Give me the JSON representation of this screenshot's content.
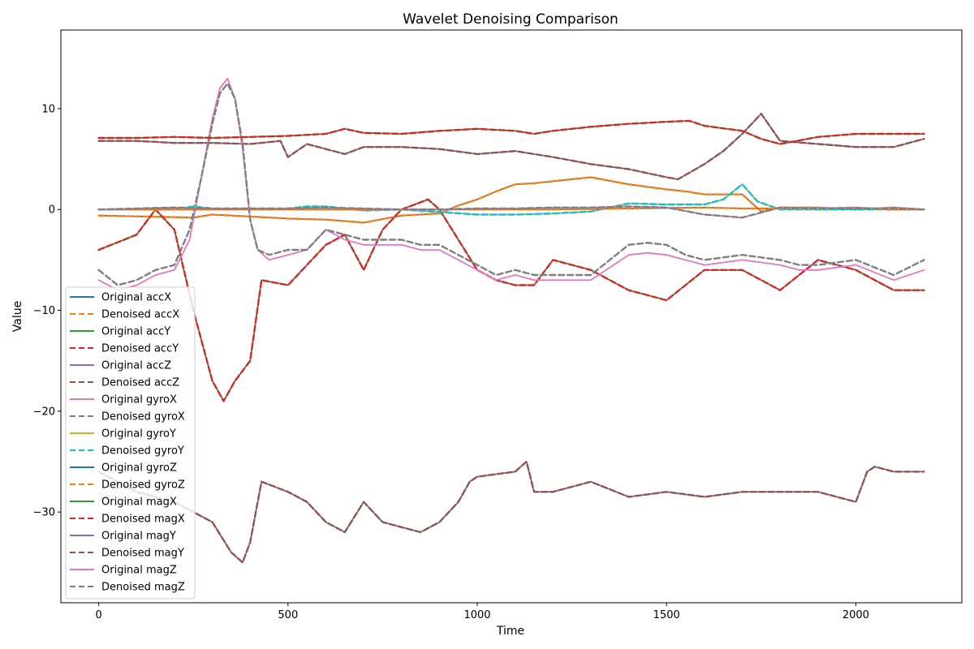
{
  "chart_data": {
    "type": "line",
    "title": "Wavelet Denoising Comparison",
    "xlabel": "Time",
    "ylabel": "Value",
    "xlim": [
      -100,
      2280
    ],
    "ylim": [
      -39,
      17.8
    ],
    "x_ticks": [
      0,
      500,
      1000,
      1500,
      2000
    ],
    "y_ticks": [
      -30,
      -20,
      -10,
      0,
      10
    ],
    "x_tick_labels": [
      "0",
      "500",
      "1000",
      "1500",
      "2000"
    ],
    "y_tick_labels": [
      "−30",
      "−20",
      "−10",
      "0",
      "10"
    ],
    "grid": false,
    "legend_position": "lower-left",
    "series": [
      {
        "name": "Original accX",
        "color": "#1f77b4",
        "style": "solid",
        "x": [
          0,
          250,
          300,
          400,
          500,
          600,
          700,
          800,
          900,
          950,
          1000,
          1050,
          1100,
          1150,
          1200,
          1300,
          1400,
          1500,
          1550,
          1600,
          1700,
          1750,
          1800,
          1900,
          2000,
          2100,
          2180
        ],
        "y": [
          -0.6,
          -0.8,
          -0.5,
          -0.7,
          -0.9,
          -1.0,
          -1.3,
          -0.6,
          -0.4,
          0.4,
          1.0,
          1.8,
          2.5,
          2.6,
          2.8,
          3.2,
          2.5,
          2.0,
          1.8,
          1.5,
          1.5,
          -0.2,
          0.2,
          0.2,
          0.0,
          0.2,
          0.0
        ]
      },
      {
        "name": "Denoised accX",
        "color": "#ff7f0e",
        "style": "dashed",
        "x": [
          0,
          250,
          300,
          400,
          500,
          600,
          700,
          800,
          900,
          950,
          1000,
          1050,
          1100,
          1150,
          1200,
          1300,
          1400,
          1500,
          1550,
          1600,
          1700,
          1750,
          1800,
          1900,
          2000,
          2100,
          2180
        ],
        "y": [
          -0.6,
          -0.8,
          -0.5,
          -0.7,
          -0.9,
          -1.0,
          -1.3,
          -0.6,
          -0.4,
          0.4,
          1.0,
          1.8,
          2.5,
          2.6,
          2.8,
          3.2,
          2.5,
          2.0,
          1.8,
          1.5,
          1.5,
          -0.2,
          0.2,
          0.2,
          0.0,
          0.2,
          0.0
        ]
      },
      {
        "name": "Original accY",
        "color": "#2ca02c",
        "style": "solid",
        "x": [
          0,
          100,
          150,
          200,
          250,
          300,
          330,
          360,
          400,
          430,
          500,
          550,
          600,
          650,
          700,
          750,
          800,
          870,
          900,
          950,
          1000,
          1050,
          1100,
          1150,
          1200,
          1300,
          1400,
          1500,
          1600,
          1700,
          1800,
          1900,
          2000,
          2100,
          2180
        ],
        "y": [
          -4,
          -2.5,
          0,
          -2,
          -10,
          -17,
          -19,
          -17,
          -15,
          -7,
          -7.5,
          -5.5,
          -3.5,
          -2.5,
          -6,
          -2,
          0,
          1,
          0,
          -3,
          -6,
          -7,
          -7.5,
          -7.5,
          -5,
          -6,
          -8,
          -9,
          -6,
          -6,
          -8,
          -5,
          -6,
          -8,
          -8
        ]
      },
      {
        "name": "Denoised accY",
        "color": "#d62728",
        "style": "dashed",
        "x": [
          0,
          100,
          150,
          200,
          250,
          300,
          330,
          360,
          400,
          430,
          500,
          550,
          600,
          650,
          700,
          750,
          800,
          870,
          900,
          950,
          1000,
          1050,
          1100,
          1150,
          1200,
          1300,
          1400,
          1500,
          1600,
          1700,
          1800,
          1900,
          2000,
          2100,
          2180
        ],
        "y": [
          -4,
          -2.5,
          0,
          -2,
          -10,
          -17,
          -19,
          -17,
          -15,
          -7,
          -7.5,
          -5.5,
          -3.5,
          -2.5,
          -6,
          -2,
          0,
          1,
          0,
          -3,
          -6,
          -7,
          -7.5,
          -7.5,
          -5,
          -6,
          -8,
          -9,
          -6,
          -6,
          -8,
          -5,
          -6,
          -8,
          -8
        ]
      },
      {
        "name": "Original accZ",
        "color": "#9467bd",
        "style": "solid",
        "x": [
          0,
          100,
          200,
          300,
          400,
          480,
          500,
          550,
          600,
          650,
          700,
          800,
          900,
          1000,
          1100,
          1200,
          1300,
          1400,
          1500,
          1530,
          1600,
          1650,
          1700,
          1750,
          1800,
          1900,
          2000,
          2100,
          2180
        ],
        "y": [
          6.8,
          6.8,
          6.6,
          6.6,
          6.5,
          6.8,
          5.2,
          6.5,
          6.0,
          5.5,
          6.2,
          6.2,
          6.0,
          5.5,
          5.8,
          5.2,
          4.5,
          4.0,
          3.2,
          3.0,
          4.5,
          5.8,
          7.5,
          9.5,
          6.8,
          6.5,
          6.2,
          6.2,
          7.0
        ]
      },
      {
        "name": "Denoised accZ",
        "color": "#8c564b",
        "style": "dashed",
        "x": [
          0,
          100,
          200,
          300,
          400,
          480,
          500,
          550,
          600,
          650,
          700,
          800,
          900,
          1000,
          1100,
          1200,
          1300,
          1400,
          1500,
          1530,
          1600,
          1650,
          1700,
          1750,
          1800,
          1900,
          2000,
          2100,
          2180
        ],
        "y": [
          6.8,
          6.8,
          6.6,
          6.6,
          6.5,
          6.8,
          5.2,
          6.5,
          6.0,
          5.5,
          6.2,
          6.2,
          6.0,
          5.5,
          5.8,
          5.2,
          4.5,
          4.0,
          3.2,
          3.0,
          4.5,
          5.8,
          7.5,
          9.5,
          6.8,
          6.5,
          6.2,
          6.2,
          7.0
        ]
      },
      {
        "name": "Original gyroX",
        "color": "#e377c2",
        "style": "solid",
        "x": [
          0,
          50,
          100,
          150,
          200,
          240,
          270,
          300,
          320,
          340,
          360,
          380,
          400,
          420,
          450,
          500,
          550,
          600,
          650,
          700,
          750,
          800,
          850,
          900,
          950,
          1000,
          1050,
          1100,
          1150,
          1200,
          1300,
          1400,
          1450,
          1500,
          1550,
          1600,
          1700,
          1800,
          1850,
          1900,
          2000,
          2100,
          2180
        ],
        "y": [
          -7,
          -8,
          -7.5,
          -6.5,
          -6,
          -3,
          3,
          9,
          12,
          13,
          11,
          6,
          -1,
          -4,
          -5,
          -4.5,
          -4,
          -2,
          -3,
          -3.5,
          -3.5,
          -3.5,
          -4,
          -4,
          -5,
          -6,
          -7,
          -6.5,
          -7,
          -7,
          -7,
          -4.5,
          -4.3,
          -4.5,
          -5,
          -5.5,
          -5,
          -5.5,
          -6,
          -6,
          -5.5,
          -7,
          -6
        ]
      },
      {
        "name": "Denoised gyroX",
        "color": "#7f7f7f",
        "style": "dashed",
        "x": [
          0,
          50,
          100,
          150,
          200,
          240,
          270,
          300,
          320,
          340,
          360,
          380,
          400,
          420,
          450,
          500,
          550,
          600,
          650,
          700,
          750,
          800,
          850,
          900,
          950,
          1000,
          1050,
          1100,
          1150,
          1200,
          1300,
          1400,
          1450,
          1500,
          1550,
          1600,
          1700,
          1800,
          1850,
          1900,
          2000,
          2100,
          2180
        ],
        "y": [
          -6,
          -7.5,
          -7,
          -6,
          -5.5,
          -2,
          3,
          8.5,
          11.5,
          12.5,
          11,
          6.5,
          -1,
          -4,
          -4.5,
          -4,
          -4,
          -2,
          -2.5,
          -3,
          -3,
          -3,
          -3.5,
          -3.5,
          -4.5,
          -5.5,
          -6.5,
          -6,
          -6.5,
          -6.5,
          -6.5,
          -3.5,
          -3.3,
          -3.5,
          -4.5,
          -5,
          -4.5,
          -5,
          -5.5,
          -5.5,
          -5,
          -6.5,
          -5
        ]
      },
      {
        "name": "Original gyroY",
        "color": "#bcbd22",
        "style": "solid",
        "x": [
          0,
          200,
          250,
          300,
          400,
          500,
          550,
          600,
          700,
          800,
          1000,
          1100,
          1200,
          1300,
          1400,
          1500,
          1600,
          1650,
          1700,
          1740,
          1800,
          1900,
          2000,
          2100,
          2180
        ],
        "y": [
          0,
          0,
          0.3,
          0.1,
          0,
          0.1,
          0.3,
          0.3,
          -0.1,
          0,
          -0.5,
          -0.5,
          -0.4,
          -0.2,
          0.6,
          0.5,
          0.5,
          1.0,
          2.5,
          0.8,
          0,
          0,
          0,
          0,
          0
        ]
      },
      {
        "name": "Denoised gyroY",
        "color": "#17becf",
        "style": "dashed",
        "x": [
          0,
          200,
          250,
          300,
          400,
          500,
          550,
          600,
          700,
          800,
          1000,
          1100,
          1200,
          1300,
          1400,
          1500,
          1600,
          1650,
          1700,
          1740,
          1800,
          1900,
          2000,
          2100,
          2180
        ],
        "y": [
          0,
          0,
          0.3,
          0.1,
          0,
          0.1,
          0.3,
          0.3,
          -0.1,
          0,
          -0.5,
          -0.5,
          -0.4,
          -0.2,
          0.6,
          0.5,
          0.5,
          1.0,
          2.5,
          0.8,
          0,
          0,
          0,
          0,
          0
        ]
      },
      {
        "name": "Original gyroZ",
        "color": "#1f77b4",
        "style": "solid",
        "x": [
          0,
          200,
          400,
          600,
          800,
          1000,
          1200,
          1400,
          1600,
          1700,
          1800,
          1900,
          2000,
          2100,
          2180
        ],
        "y": [
          0,
          0,
          0,
          0,
          0,
          0,
          0,
          0.1,
          0.2,
          0.1,
          0.1,
          0.1,
          0.2,
          0,
          0
        ]
      },
      {
        "name": "Denoised gyroZ",
        "color": "#ff7f0e",
        "style": "dashed",
        "x": [
          0,
          200,
          400,
          600,
          800,
          1000,
          1200,
          1400,
          1600,
          1700,
          1800,
          1900,
          2000,
          2100,
          2180
        ],
        "y": [
          0,
          0,
          0,
          0,
          0,
          0,
          0,
          0.1,
          0.2,
          0.1,
          0.1,
          0.1,
          0.2,
          0,
          0
        ]
      },
      {
        "name": "Original magX",
        "color": "#2ca02c",
        "style": "solid",
        "x": [
          0,
          100,
          200,
          300,
          400,
          500,
          600,
          650,
          700,
          800,
          900,
          1000,
          1100,
          1150,
          1200,
          1300,
          1400,
          1500,
          1560,
          1600,
          1700,
          1750,
          1800,
          1900,
          2000,
          2100,
          2180
        ],
        "y": [
          7.1,
          7.1,
          7.2,
          7.1,
          7.2,
          7.3,
          7.5,
          8.0,
          7.6,
          7.5,
          7.8,
          8.0,
          7.8,
          7.5,
          7.8,
          8.2,
          8.5,
          8.7,
          8.8,
          8.3,
          7.8,
          7.0,
          6.5,
          7.2,
          7.5,
          7.5,
          7.5
        ]
      },
      {
        "name": "Denoised magX",
        "color": "#d62728",
        "style": "dashed",
        "x": [
          0,
          100,
          200,
          300,
          400,
          500,
          600,
          650,
          700,
          800,
          900,
          1000,
          1100,
          1150,
          1200,
          1300,
          1400,
          1500,
          1560,
          1600,
          1700,
          1750,
          1800,
          1900,
          2000,
          2100,
          2180
        ],
        "y": [
          7.1,
          7.1,
          7.2,
          7.1,
          7.2,
          7.3,
          7.5,
          8.0,
          7.6,
          7.5,
          7.8,
          8.0,
          7.8,
          7.5,
          7.8,
          8.2,
          8.5,
          8.7,
          8.8,
          8.3,
          7.8,
          7.0,
          6.5,
          7.2,
          7.5,
          7.5,
          7.5
        ]
      },
      {
        "name": "Original magY",
        "color": "#9467bd",
        "style": "solid",
        "x": [
          0,
          100,
          200,
          250,
          300,
          350,
          380,
          400,
          430,
          500,
          550,
          600,
          650,
          700,
          750,
          800,
          850,
          900,
          950,
          980,
          1000,
          1100,
          1130,
          1150,
          1200,
          1300,
          1400,
          1500,
          1600,
          1700,
          1800,
          1900,
          2000,
          2030,
          2050,
          2100,
          2180
        ],
        "y": [
          -26,
          -28,
          -29,
          -30,
          -31,
          -34,
          -35,
          -33,
          -27,
          -28,
          -29,
          -31,
          -32,
          -29,
          -31,
          -31.5,
          -32,
          -31,
          -29,
          -27,
          -26.5,
          -26,
          -25,
          -28,
          -28,
          -27,
          -28.5,
          -28,
          -28.5,
          -28,
          -28,
          -28,
          -29,
          -26,
          -25.5,
          -26,
          -26
        ]
      },
      {
        "name": "Denoised magY",
        "color": "#8c564b",
        "style": "dashed",
        "x": [
          0,
          100,
          200,
          250,
          300,
          350,
          380,
          400,
          430,
          500,
          550,
          600,
          650,
          700,
          750,
          800,
          850,
          900,
          950,
          980,
          1000,
          1100,
          1130,
          1150,
          1200,
          1300,
          1400,
          1500,
          1600,
          1700,
          1800,
          1900,
          2000,
          2030,
          2050,
          2100,
          2180
        ],
        "y": [
          -26,
          -28,
          -29,
          -30,
          -31,
          -34,
          -35,
          -33,
          -27,
          -28,
          -29,
          -31,
          -32,
          -29,
          -31,
          -31.5,
          -32,
          -31,
          -29,
          -27,
          -26.5,
          -26,
          -25,
          -28,
          -28,
          -27,
          -28.5,
          -28,
          -28.5,
          -28,
          -28,
          -28,
          -29,
          -26,
          -25.5,
          -26,
          -26
        ]
      },
      {
        "name": "Original magZ",
        "color": "#e377c2",
        "style": "solid",
        "x": [
          0,
          100,
          200,
          300,
          400,
          500,
          600,
          700,
          800,
          900,
          1000,
          1100,
          1200,
          1300,
          1400,
          1500,
          1600,
          1700,
          1800,
          1900,
          2000,
          2100,
          2180
        ],
        "y": [
          0,
          0.1,
          0.2,
          0.1,
          0.1,
          0.1,
          0.2,
          0.1,
          0,
          0,
          0.1,
          0.1,
          0.2,
          0.2,
          0.3,
          0.2,
          -0.5,
          -0.8,
          0.2,
          0.1,
          0.1,
          0.1,
          0
        ]
      },
      {
        "name": "Denoised magZ",
        "color": "#7f7f7f",
        "style": "dashed",
        "x": [
          0,
          100,
          200,
          300,
          400,
          500,
          600,
          700,
          800,
          900,
          1000,
          1100,
          1200,
          1300,
          1400,
          1500,
          1600,
          1700,
          1800,
          1900,
          2000,
          2100,
          2180
        ],
        "y": [
          0,
          0.1,
          0.2,
          0.1,
          0.1,
          0.1,
          0.2,
          0.1,
          0,
          0,
          0.1,
          0.1,
          0.2,
          0.2,
          0.3,
          0.2,
          -0.5,
          -0.8,
          0.2,
          0.1,
          0.1,
          0.1,
          0
        ]
      }
    ]
  }
}
